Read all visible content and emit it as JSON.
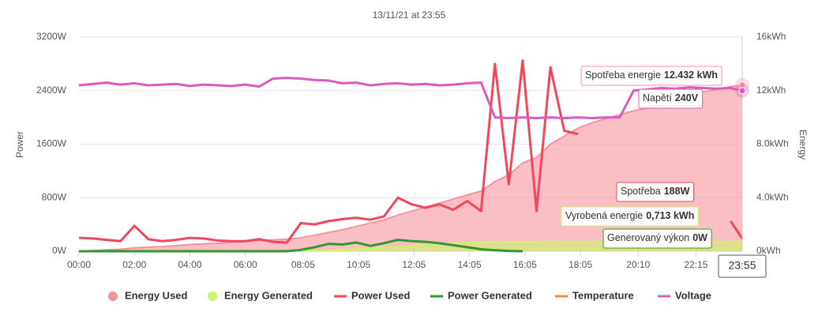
{
  "chart_data": {
    "type": "combo",
    "title": "13/11/21 at 23:55",
    "ylabel": "Power",
    "y2label": "Energy",
    "x": [
      "00:00",
      "00:30",
      "01:00",
      "01:30",
      "02:00",
      "02:30",
      "03:00",
      "03:30",
      "04:00",
      "04:30",
      "05:00",
      "05:30",
      "06:00",
      "06:30",
      "07:00",
      "07:30",
      "08:00",
      "08:30",
      "09:00",
      "09:30",
      "10:00",
      "10:30",
      "11:00",
      "11:30",
      "12:00",
      "12:30",
      "13:00",
      "13:30",
      "14:00",
      "14:30",
      "15:00",
      "15:30",
      "16:00",
      "16:30",
      "17:00",
      "17:30",
      "18:00",
      "18:30",
      "19:00",
      "19:30",
      "20:00",
      "20:30",
      "21:00",
      "21:30",
      "22:00",
      "22:30",
      "23:00",
      "23:30",
      "23:55"
    ],
    "xticks": [
      "00:00",
      "02:00",
      "04:00",
      "06:00",
      "08:05",
      "10:05",
      "12:05",
      "14:05",
      "16:05",
      "18:05",
      "20:10",
      "22:15"
    ],
    "ylim": [
      0,
      3200
    ],
    "yticks": [
      {
        "value": 0,
        "label": "0W"
      },
      {
        "value": 800,
        "label": "800W"
      },
      {
        "value": 1600,
        "label": "1600W"
      },
      {
        "value": 2400,
        "label": "2400W"
      },
      {
        "value": 3200,
        "label": "3200W"
      }
    ],
    "y2lim": [
      0,
      16
    ],
    "y2ticks": [
      {
        "value": 0,
        "label": "0kWh"
      },
      {
        "value": 4,
        "label": "4.0kWh"
      },
      {
        "value": 8,
        "label": "8.0kWh"
      },
      {
        "value": 12,
        "label": "12kWh"
      },
      {
        "value": 16,
        "label": "16kWh"
      }
    ],
    "y3lim": [
      0,
      320
    ],
    "grid": true,
    "legend": "bottom",
    "series": [
      {
        "name": "Energy Used",
        "type": "area",
        "axis": "y2",
        "color": "#f7939f",
        "values": [
          0,
          0.05,
          0.1,
          0.15,
          0.25,
          0.3,
          0.35,
          0.42,
          0.5,
          0.55,
          0.6,
          0.66,
          0.72,
          0.78,
          0.85,
          0.9,
          1.0,
          1.2,
          1.4,
          1.6,
          1.85,
          2.1,
          2.35,
          2.7,
          3.0,
          3.3,
          3.6,
          3.9,
          4.2,
          4.5,
          5.2,
          5.7,
          6.6,
          7.0,
          8.0,
          8.6,
          9.2,
          9.6,
          9.9,
          10.2,
          10.5,
          10.7,
          11.0,
          11.3,
          11.6,
          11.9,
          12.1,
          12.3,
          12.432
        ]
      },
      {
        "name": "Energy Generated",
        "type": "area",
        "axis": "y2",
        "color": "#c9f56a",
        "values": [
          0,
          0,
          0,
          0,
          0,
          0,
          0,
          0,
          0,
          0,
          0,
          0,
          0,
          0,
          0,
          0,
          0.01,
          0.04,
          0.08,
          0.12,
          0.18,
          0.22,
          0.28,
          0.35,
          0.42,
          0.48,
          0.54,
          0.6,
          0.64,
          0.67,
          0.69,
          0.7,
          0.705,
          0.71,
          0.713,
          0.713,
          0.713,
          0.713,
          0.713,
          0.713,
          0.713,
          0.713,
          0.713,
          0.713,
          0.713,
          0.713,
          0.713,
          0.713,
          0.713
        ]
      },
      {
        "name": "Power Used",
        "type": "line",
        "axis": "y",
        "color": "#f2475a",
        "values": [
          200,
          190,
          170,
          150,
          380,
          180,
          150,
          170,
          200,
          190,
          160,
          150,
          150,
          180,
          140,
          130,
          420,
          400,
          450,
          480,
          500,
          470,
          520,
          800,
          700,
          650,
          700,
          620,
          750,
          600,
          2800,
          1000,
          2850,
          600,
          2750,
          1800,
          1750,
          null,
          null,
          null,
          null,
          null,
          null,
          null,
          null,
          null,
          null,
          450,
          188
        ]
      },
      {
        "name": "Power Generated",
        "type": "line",
        "axis": "y",
        "color": "#2e9a2e",
        "values": [
          0,
          0,
          0,
          0,
          0,
          0,
          0,
          0,
          0,
          0,
          0,
          0,
          0,
          0,
          0,
          0,
          20,
          60,
          110,
          100,
          130,
          80,
          120,
          170,
          150,
          140,
          120,
          90,
          60,
          30,
          15,
          5,
          0,
          null,
          null,
          null,
          null,
          null,
          null,
          null,
          null,
          null,
          null,
          null,
          null,
          null,
          null,
          null,
          0
        ]
      },
      {
        "name": "Temperature",
        "type": "line",
        "axis": "y",
        "color": "#f7873a",
        "values": [
          null,
          null,
          null,
          null,
          null,
          null,
          null,
          null,
          null,
          null,
          null,
          null,
          null,
          null,
          null,
          null,
          null,
          null,
          null,
          null,
          null,
          null,
          null,
          null,
          null,
          null,
          null,
          null,
          null,
          null,
          null,
          null,
          null,
          null,
          null,
          null,
          null,
          null,
          null,
          null,
          null,
          null,
          null,
          null,
          null,
          null,
          null,
          null,
          null
        ]
      },
      {
        "name": "Voltage",
        "type": "line",
        "axis": "y3",
        "color": "#d95cbc",
        "values": [
          248,
          250,
          252,
          249,
          251,
          248,
          249,
          250,
          247,
          249,
          248,
          247,
          249,
          246,
          258,
          259,
          258,
          256,
          255,
          251,
          252,
          248,
          250,
          251,
          249,
          250,
          248,
          249,
          251,
          252,
          200,
          199,
          200,
          199,
          200,
          199,
          200,
          199,
          200,
          200,
          240,
          242,
          244,
          243,
          245,
          244,
          243,
          244,
          240
        ]
      }
    ],
    "tooltips": [
      {
        "label": "Spotřeba energie",
        "value_label": "12.432 kWh"
      },
      {
        "label": "Napětí",
        "value_label": "240V"
      },
      {
        "label": "Spotřeba",
        "value_label": "188W"
      },
      {
        "label": "Vyrobená energie",
        "value_label": "0,713 kWh"
      },
      {
        "label": "Generovaný výkon",
        "value_label": "0W"
      }
    ]
  }
}
